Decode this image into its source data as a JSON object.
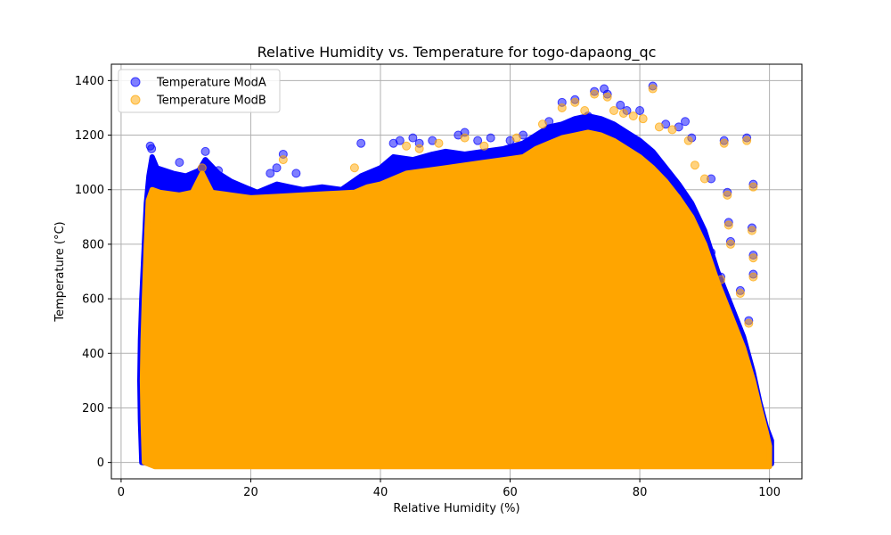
{
  "chart_data": {
    "type": "scatter",
    "title": "Relative Humidity vs. Temperature for togo-dapaong_qc",
    "xlabel": "Relative Humidity (%)",
    "ylabel": "Temperature (°C)",
    "xlim": [
      -1.5,
      105
    ],
    "ylim": [
      -60,
      1460
    ],
    "xticks": [
      0,
      20,
      40,
      60,
      80,
      100
    ],
    "yticks": [
      0,
      200,
      400,
      600,
      800,
      1000,
      1200,
      1400
    ],
    "grid": true,
    "legend_position": "top-left",
    "series": [
      {
        "name": "Temperature ModA",
        "color": "#0000ff",
        "alpha": 0.5,
        "envelope": [
          [
            3.2,
            0
          ],
          [
            3.0,
            150
          ],
          [
            2.9,
            300
          ],
          [
            3.0,
            450
          ],
          [
            3.2,
            600
          ],
          [
            3.6,
            800
          ],
          [
            3.9,
            950
          ],
          [
            4.3,
            1050
          ],
          [
            4.8,
            1120
          ],
          [
            5.5,
            1080
          ],
          [
            8,
            1060
          ],
          [
            10,
            1050
          ],
          [
            12,
            1070
          ],
          [
            13,
            1110
          ],
          [
            15,
            1060
          ],
          [
            17,
            1030
          ],
          [
            19,
            1010
          ],
          [
            21,
            990
          ],
          [
            24,
            1020
          ],
          [
            26,
            1010
          ],
          [
            28,
            1000
          ],
          [
            31,
            1010
          ],
          [
            34,
            1000
          ],
          [
            37,
            1050
          ],
          [
            40,
            1080
          ],
          [
            42,
            1120
          ],
          [
            45,
            1110
          ],
          [
            48,
            1130
          ],
          [
            50,
            1140
          ],
          [
            53,
            1130
          ],
          [
            56,
            1140
          ],
          [
            59,
            1150
          ],
          [
            62,
            1170
          ],
          [
            64,
            1200
          ],
          [
            66,
            1230
          ],
          [
            68,
            1240
          ],
          [
            70,
            1260
          ],
          [
            72,
            1270
          ],
          [
            74,
            1260
          ],
          [
            76,
            1240
          ],
          [
            78,
            1210
          ],
          [
            80,
            1180
          ],
          [
            82,
            1140
          ],
          [
            84,
            1080
          ],
          [
            86,
            1020
          ],
          [
            88,
            950
          ],
          [
            90,
            850
          ],
          [
            92,
            700
          ],
          [
            94,
            580
          ],
          [
            96,
            460
          ],
          [
            97.5,
            330
          ],
          [
            98.5,
            220
          ],
          [
            99.5,
            130
          ],
          [
            100.3,
            80
          ],
          [
            100.3,
            -5
          ],
          [
            5,
            -5
          ]
        ],
        "outliers": [
          [
            4.5,
            1160
          ],
          [
            4.7,
            1150
          ],
          [
            9,
            1100
          ],
          [
            13,
            1140
          ],
          [
            14.5,
            1060
          ],
          [
            15,
            1070
          ],
          [
            23,
            1060
          ],
          [
            24,
            1080
          ],
          [
            25,
            1130
          ],
          [
            27,
            1060
          ],
          [
            37,
            1170
          ],
          [
            42,
            1170
          ],
          [
            43,
            1180
          ],
          [
            45,
            1190
          ],
          [
            46,
            1170
          ],
          [
            48,
            1180
          ],
          [
            52,
            1200
          ],
          [
            53,
            1210
          ],
          [
            55,
            1180
          ],
          [
            57,
            1190
          ],
          [
            60,
            1180
          ],
          [
            62,
            1200
          ],
          [
            66,
            1250
          ],
          [
            68,
            1320
          ],
          [
            70,
            1330
          ],
          [
            72,
            1270
          ],
          [
            73,
            1360
          ],
          [
            74.5,
            1370
          ],
          [
            75,
            1350
          ],
          [
            77,
            1310
          ],
          [
            78,
            1290
          ],
          [
            80,
            1290
          ],
          [
            82,
            1380
          ],
          [
            84,
            1240
          ],
          [
            86,
            1230
          ],
          [
            87,
            1250
          ],
          [
            88,
            1190
          ],
          [
            91,
            1040
          ],
          [
            93,
            1180
          ],
          [
            93.5,
            990
          ],
          [
            96.5,
            1190
          ],
          [
            97.5,
            1020
          ],
          [
            97.3,
            860
          ],
          [
            97.5,
            760
          ],
          [
            97.5,
            690
          ],
          [
            93.7,
            880
          ],
          [
            94,
            810
          ],
          [
            91,
            770
          ],
          [
            92.5,
            680
          ],
          [
            95.5,
            630
          ],
          [
            96.8,
            520
          ]
        ]
      },
      {
        "name": "Temperature ModB",
        "color": "#ffa500",
        "alpha": 0.5,
        "envelope": [
          [
            3.6,
            0
          ],
          [
            3.4,
            150
          ],
          [
            3.3,
            300
          ],
          [
            3.4,
            450
          ],
          [
            3.6,
            600
          ],
          [
            3.9,
            800
          ],
          [
            4.2,
            960
          ],
          [
            4.8,
            1000
          ],
          [
            6,
            990
          ],
          [
            9,
            980
          ],
          [
            11,
            990
          ],
          [
            12.5,
            1060
          ],
          [
            14,
            990
          ],
          [
            17,
            980
          ],
          [
            20,
            970
          ],
          [
            24,
            975
          ],
          [
            28,
            980
          ],
          [
            32,
            985
          ],
          [
            36,
            990
          ],
          [
            38,
            1010
          ],
          [
            40,
            1020
          ],
          [
            42,
            1040
          ],
          [
            44,
            1060
          ],
          [
            47,
            1070
          ],
          [
            50,
            1080
          ],
          [
            53,
            1090
          ],
          [
            56,
            1100
          ],
          [
            59,
            1110
          ],
          [
            62,
            1120
          ],
          [
            64,
            1150
          ],
          [
            66,
            1170
          ],
          [
            68,
            1190
          ],
          [
            70,
            1200
          ],
          [
            72,
            1210
          ],
          [
            74,
            1200
          ],
          [
            76,
            1180
          ],
          [
            78,
            1150
          ],
          [
            80,
            1120
          ],
          [
            82,
            1080
          ],
          [
            84,
            1030
          ],
          [
            86,
            970
          ],
          [
            88,
            900
          ],
          [
            90,
            800
          ],
          [
            92,
            660
          ],
          [
            94,
            540
          ],
          [
            96,
            420
          ],
          [
            97.5,
            300
          ],
          [
            98.5,
            200
          ],
          [
            99.5,
            110
          ],
          [
            100,
            60
          ],
          [
            100,
            -15
          ],
          [
            5.2,
            -15
          ]
        ],
        "outliers": [
          [
            12.5,
            1080
          ],
          [
            25,
            1110
          ],
          [
            36,
            1080
          ],
          [
            44,
            1160
          ],
          [
            46,
            1150
          ],
          [
            49,
            1170
          ],
          [
            53,
            1190
          ],
          [
            56,
            1160
          ],
          [
            61,
            1190
          ],
          [
            65,
            1240
          ],
          [
            68,
            1300
          ],
          [
            70,
            1320
          ],
          [
            71.5,
            1290
          ],
          [
            73,
            1350
          ],
          [
            75,
            1340
          ],
          [
            76,
            1290
          ],
          [
            77.5,
            1280
          ],
          [
            79,
            1270
          ],
          [
            80.5,
            1260
          ],
          [
            82,
            1370
          ],
          [
            83,
            1230
          ],
          [
            85,
            1220
          ],
          [
            87.5,
            1180
          ],
          [
            88.5,
            1090
          ],
          [
            90,
            1040
          ],
          [
            93,
            1170
          ],
          [
            93.5,
            980
          ],
          [
            96.5,
            1180
          ],
          [
            97.5,
            1010
          ],
          [
            97.3,
            850
          ],
          [
            97.5,
            750
          ],
          [
            97.5,
            680
          ],
          [
            93.7,
            870
          ],
          [
            94,
            800
          ],
          [
            92.5,
            670
          ],
          [
            95.5,
            620
          ],
          [
            96.8,
            510
          ]
        ]
      }
    ]
  }
}
